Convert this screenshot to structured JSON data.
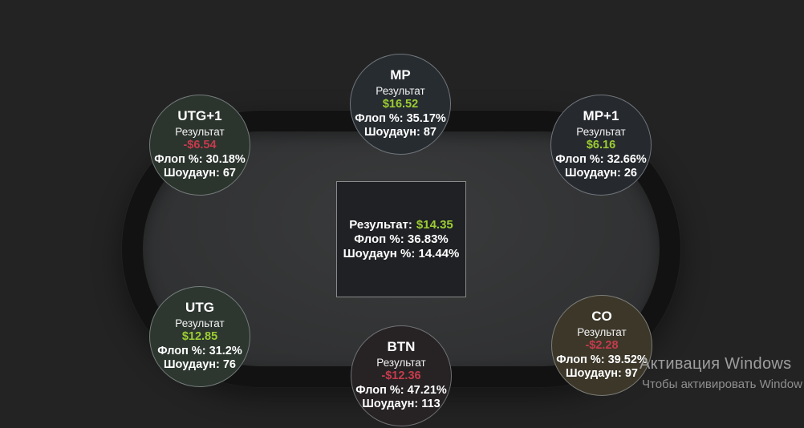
{
  "app": {
    "background": "#232323"
  },
  "colors": {
    "positive": "#9ccd32",
    "negative": "#c53b4c",
    "text": "#ffffff"
  },
  "center_stats": {
    "result_label": "Результат:",
    "result_value": "$14.35",
    "flop": "Флоп %: 36.83%",
    "showdown": "Шоудаун %: 14.44%"
  },
  "seats": [
    {
      "position": "UTG+1",
      "result_label": "Результат",
      "result_value": "-$6.54",
      "value_color": "#c53b4c",
      "flop": "Флоп %: 30.18%",
      "showdown": "Шоудаун: 67",
      "bg": "#2c342e"
    },
    {
      "position": "MP",
      "result_label": "Результат",
      "result_value": "$16.52",
      "value_color": "#9ccd32",
      "flop": "Флоп %: 35.17%",
      "showdown": "Шоудаун: 87",
      "bg": "#272c31"
    },
    {
      "position": "MP+1",
      "result_label": "Результат",
      "result_value": "$6.16",
      "value_color": "#9ccd32",
      "flop": "Флоп %: 32.66%",
      "showdown": "Шоудаун: 26",
      "bg": "#262a2f"
    },
    {
      "position": "UTG",
      "result_label": "Результат",
      "result_value": "$12.85",
      "value_color": "#9ccd32",
      "flop": "Флоп %: 31.2%",
      "showdown": "Шоудаун: 76",
      "bg": "#2d3730"
    },
    {
      "position": "BTN",
      "result_label": "Результат",
      "result_value": "-$12.36",
      "value_color": "#c53b4c",
      "flop": "Флоп %: 47.21%",
      "showdown": "Шоудаун: 113",
      "bg": "#272324"
    },
    {
      "position": "CO",
      "result_label": "Результат",
      "result_value": "-$2.28",
      "value_color": "#c53b4c",
      "flop": "Флоп %: 39.52%",
      "showdown": "Шоудаун: 97",
      "bg": "#3c3729"
    }
  ],
  "watermark": {
    "title": "Активация Windows",
    "subtitle": "Чтобы активировать Window"
  }
}
